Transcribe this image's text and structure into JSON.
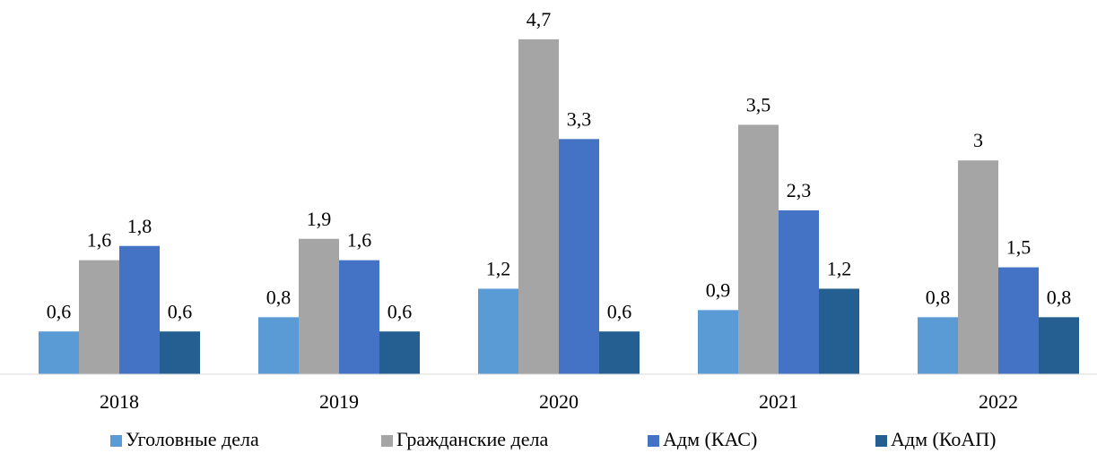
{
  "chart_data": {
    "type": "bar",
    "categories": [
      "2018",
      "2019",
      "2020",
      "2021",
      "2022"
    ],
    "series": [
      {
        "name": "Уголовные дела",
        "color": "#5b9bd5",
        "values": [
          0.6,
          0.8,
          1.2,
          0.9,
          0.8
        ],
        "value_labels": [
          "0,6",
          "0,8",
          "1,2",
          "0,9",
          "0,8"
        ]
      },
      {
        "name": "Гражданские дела",
        "color": "#a5a5a5",
        "values": [
          1.6,
          1.9,
          4.7,
          3.5,
          3
        ],
        "value_labels": [
          "1,6",
          "1,9",
          "4,7",
          "3,5",
          "3"
        ]
      },
      {
        "name": "Адм (КАС)",
        "color": "#4472c4",
        "values": [
          1.8,
          1.6,
          3.3,
          2.3,
          1.5
        ],
        "value_labels": [
          "1,8",
          "1,6",
          "3,3",
          "2,3",
          "1,5"
        ]
      },
      {
        "name": "Адм (КоАП)",
        "color": "#255e91",
        "values": [
          0.6,
          0.6,
          0.6,
          1.2,
          0.8
        ],
        "value_labels": [
          "0,6",
          "0,6",
          "0,6",
          "1,2",
          "0,8"
        ]
      }
    ],
    "ylim": [
      0,
      5
    ],
    "grid": false,
    "legend": "bottom"
  }
}
